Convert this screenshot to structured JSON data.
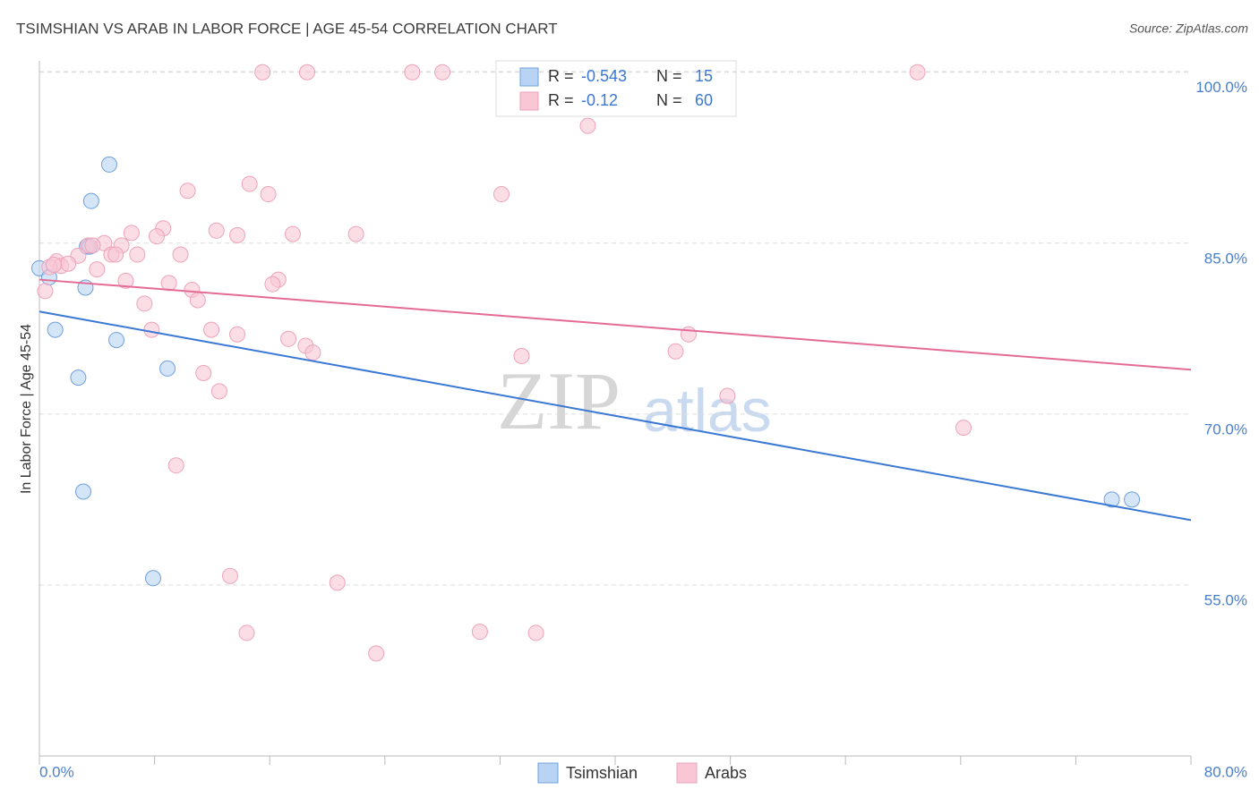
{
  "chart_data": {
    "type": "scatter",
    "title": "TSIMSHIAN VS ARAB IN LABOR FORCE | AGE 45-54 CORRELATION CHART",
    "source": "Source: ZipAtlas.com",
    "y_label": "In Labor Force | Age 45-54",
    "watermark": [
      "ZIP",
      "atlas"
    ],
    "xlim": [
      0,
      80
    ],
    "ylim": [
      40,
      101
    ],
    "xticks": [
      {
        "value": 0,
        "label": "0.0%"
      },
      {
        "value": 80,
        "label": "80.0%"
      }
    ],
    "xtick_marks": [
      0,
      8,
      16,
      24,
      32,
      40,
      48,
      56,
      64,
      72,
      80
    ],
    "yticks": [
      {
        "value": 55,
        "label": "55.0%"
      },
      {
        "value": 70,
        "label": "70.0%"
      },
      {
        "value": 85,
        "label": "85.0%"
      },
      {
        "value": 100,
        "label": "100.0%"
      }
    ],
    "grid": true,
    "stat_labels": [
      "R =",
      "N ="
    ],
    "series": [
      {
        "name": "Tsimshian",
        "color": "#6fa0dc",
        "fill": "#b8d3f3",
        "line_color": "#3a78d4",
        "r": -0.543,
        "n": 15,
        "x": [
          0,
          0.68,
          3.3,
          3.5,
          4.85,
          3.6,
          3.2,
          1.1,
          5.35,
          2.7,
          8.9,
          3.05,
          7.9,
          74.5,
          75.9
        ],
        "values": [
          82.8,
          82.0,
          84.7,
          84.7,
          91.9,
          88.7,
          81.1,
          77.4,
          76.5,
          73.2,
          74.0,
          63.2,
          55.6,
          62.5,
          62.5
        ],
        "trend": {
          "x": [
            0,
            80
          ],
          "y": [
            79.0,
            60.7
          ]
        }
      },
      {
        "name": "Arabs",
        "color": "#eda3ba",
        "fill": "#f8c6d5",
        "line_color": "#e46b96",
        "r": -0.12,
        "n": 60,
        "x": [
          15.5,
          18.6,
          25.9,
          28.0,
          61.0,
          38.1,
          32.1,
          14.6,
          10.3,
          15.9,
          8.6,
          8.15,
          12.3,
          13.75,
          17.6,
          22.0,
          6.4,
          4.5,
          3.4,
          3.7,
          5.7,
          2.7,
          5.0,
          5.3,
          6.8,
          9.8,
          1.2,
          1.5,
          2.0,
          0.7,
          4.0,
          6.0,
          9.0,
          16.6,
          16.2,
          10.6,
          11.0,
          0.4,
          7.3,
          7.8,
          11.95,
          13.75,
          17.3,
          18.5,
          19.0,
          33.5,
          44.2,
          45.1,
          11.4,
          12.5,
          47.8,
          64.2,
          9.5,
          13.25,
          20.7,
          14.4,
          30.6,
          34.5,
          23.4,
          1.0
        ],
        "values": [
          100.0,
          100.0,
          100.0,
          100.0,
          100.0,
          95.3,
          89.3,
          90.2,
          89.6,
          89.3,
          86.3,
          85.6,
          86.1,
          85.7,
          85.8,
          85.8,
          85.9,
          85.0,
          84.8,
          84.8,
          84.8,
          83.9,
          84.0,
          84.0,
          84.0,
          84.0,
          83.4,
          83.0,
          83.2,
          82.9,
          82.7,
          81.7,
          81.5,
          81.8,
          81.4,
          80.9,
          80.0,
          80.8,
          79.7,
          77.4,
          77.4,
          77.0,
          76.6,
          76.0,
          75.4,
          75.1,
          75.5,
          77.0,
          73.6,
          72.0,
          71.6,
          68.8,
          65.5,
          55.8,
          55.2,
          50.8,
          50.9,
          50.8,
          49.0,
          83.1
        ],
        "trend": {
          "x": [
            0,
            80
          ],
          "y": [
            81.8,
            73.9
          ]
        }
      }
    ]
  }
}
